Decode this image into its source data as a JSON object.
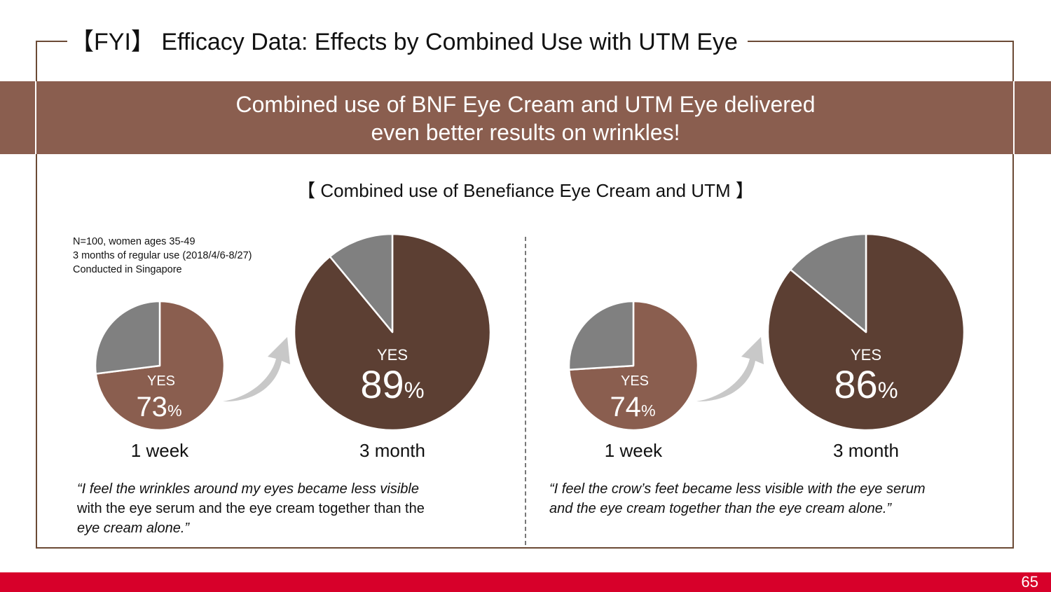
{
  "header": {
    "title": "【FYI】 Efficacy Data: Effects by Combined Use with UTM Eye"
  },
  "banner": {
    "line1": "Combined use of BNF Eye Cream and UTM Eye delivered",
    "line2": "even better results on wrinkles!"
  },
  "subtitle": "【 Combined use of Benefiance Eye Cream and UTM 】",
  "study_note": {
    "line1": "N=100, women ages 35-49",
    "line2": "3 months of regular use (2018/4/6-8/27)",
    "line3": "Conducted in Singapore"
  },
  "colors": {
    "brown_light": "#8a5e4f",
    "brown_dark": "#5c3f33",
    "grey": "#808080",
    "arrow": "#c8c8c8",
    "footer_red": "#d7002a"
  },
  "chart_data": [
    {
      "type": "pie",
      "period": "1 week",
      "answer": "YES",
      "value_text": "73",
      "unit": "%",
      "slices": [
        {
          "name": "YES",
          "value": 73
        },
        {
          "name": "other",
          "value": 27
        }
      ]
    },
    {
      "type": "pie",
      "period": "3 month",
      "answer": "YES",
      "value_text": "89",
      "unit": "%",
      "slices": [
        {
          "name": "YES",
          "value": 89
        },
        {
          "name": "other",
          "value": 11
        }
      ]
    },
    {
      "type": "pie",
      "period": "1 week",
      "answer": "YES",
      "value_text": "74",
      "unit": "%",
      "slices": [
        {
          "name": "YES",
          "value": 74
        },
        {
          "name": "other",
          "value": 26
        }
      ]
    },
    {
      "type": "pie",
      "period": "3 month",
      "answer": "YES",
      "value_text": "86",
      "unit": "%",
      "slices": [
        {
          "name": "YES",
          "value": 86
        },
        {
          "name": "other",
          "value": 14
        }
      ]
    }
  ],
  "quotes": {
    "left": {
      "line1": "“I feel the wrinkles around my eyes became less visible",
      "line2": "with the eye serum and the eye cream together than the",
      "line3": "eye cream alone.”"
    },
    "right": {
      "line1": "“I feel the crow’s feet became less visible with the eye serum",
      "line2": "and the eye cream together than the eye cream alone.”"
    }
  },
  "footer": {
    "page_number": "65"
  }
}
